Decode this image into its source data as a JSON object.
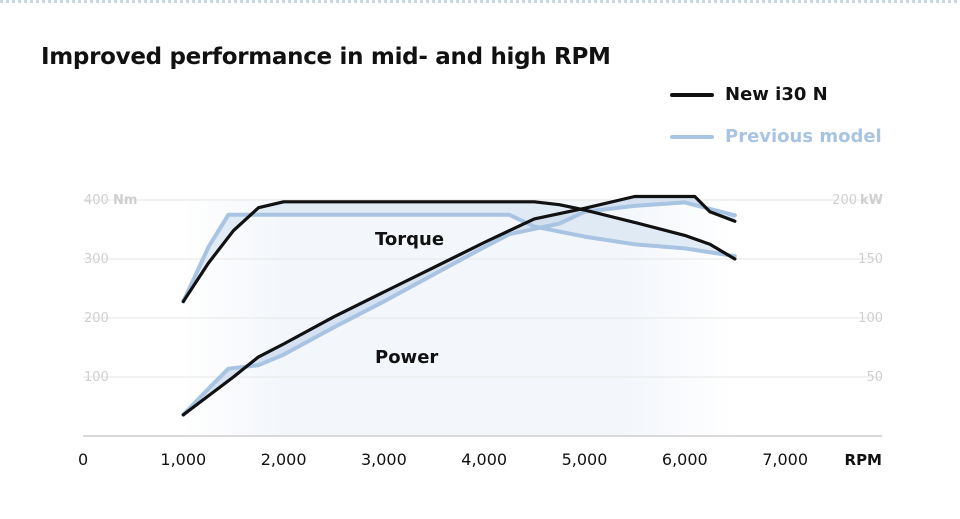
{
  "title": "Improved performance in mid- and high RPM",
  "colors": {
    "new_model": "#111111",
    "previous_model": "#a9c4e2",
    "previous_label": "#a9c4e2",
    "grid": "#e6e6e6",
    "axis_text": "#cfcfcf",
    "x_text": "#111111"
  },
  "legend": [
    {
      "label": "New i30 N",
      "color": "#111111"
    },
    {
      "label": "Previous model",
      "color": "#a9c4e2"
    }
  ],
  "chart_data": {
    "type": "line",
    "title": "Improved performance in mid- and high RPM",
    "xlabel": "RPM",
    "x_ticks": [
      "0",
      "1,000",
      "2,000",
      "3,000",
      "4,000",
      "5,000",
      "6,000",
      "7,000"
    ],
    "x_tick_values": [
      0,
      1000,
      2000,
      3000,
      4000,
      5000,
      6000,
      7000
    ],
    "xlim": [
      0,
      8000
    ],
    "y_left": {
      "unit_label": "Nm",
      "ticks": [
        "400",
        "300",
        "200",
        "100"
      ],
      "tick_values": [
        400,
        300,
        200,
        100
      ],
      "ylim": [
        0,
        400
      ]
    },
    "y_right": {
      "unit_label": "kW",
      "ticks": [
        "200",
        "150",
        "100",
        "50"
      ],
      "tick_values": [
        200,
        150,
        100,
        50
      ],
      "ylim": [
        0,
        200
      ]
    },
    "annotations": [
      "Torque",
      "Power"
    ],
    "grid": true,
    "legend_position": "top-right",
    "series": [
      {
        "name": "New i30 N",
        "group": "Torque",
        "axis": "left",
        "x": [
          1000,
          1250,
          1500,
          1750,
          2000,
          4500,
          4750,
          5000,
          5500,
          6000,
          6250,
          6500
        ],
        "y": [
          228,
          293,
          348,
          387,
          397,
          397,
          392,
          383,
          362,
          340,
          325,
          300
        ]
      },
      {
        "name": "Previous model",
        "group": "Torque",
        "axis": "left",
        "x": [
          1000,
          1250,
          1450,
          4250,
          4500,
          5000,
          5500,
          6000,
          6500
        ],
        "y": [
          228,
          320,
          375,
          375,
          355,
          338,
          325,
          318,
          305
        ]
      },
      {
        "name": "New i30 N",
        "group": "Power",
        "axis": "right",
        "x": [
          1000,
          1250,
          1500,
          1750,
          2000,
          2500,
          3000,
          3500,
          4000,
          4500,
          5000,
          5500,
          6000,
          6100,
          6250,
          6500
        ],
        "y": [
          18,
          34,
          50,
          67,
          78,
          101,
          122,
          143,
          164,
          184,
          193,
          203,
          203,
          203,
          190,
          182
        ]
      },
      {
        "name": "Previous model",
        "group": "Power",
        "axis": "right",
        "x": [
          1000,
          1250,
          1450,
          1750,
          2000,
          2500,
          3000,
          3500,
          4000,
          4250,
          4750,
          5000,
          5500,
          6000,
          6500
        ],
        "y": [
          18,
          40,
          57,
          60,
          69,
          92,
          114,
          137,
          160,
          171,
          180,
          190,
          195,
          198,
          187
        ]
      }
    ]
  }
}
